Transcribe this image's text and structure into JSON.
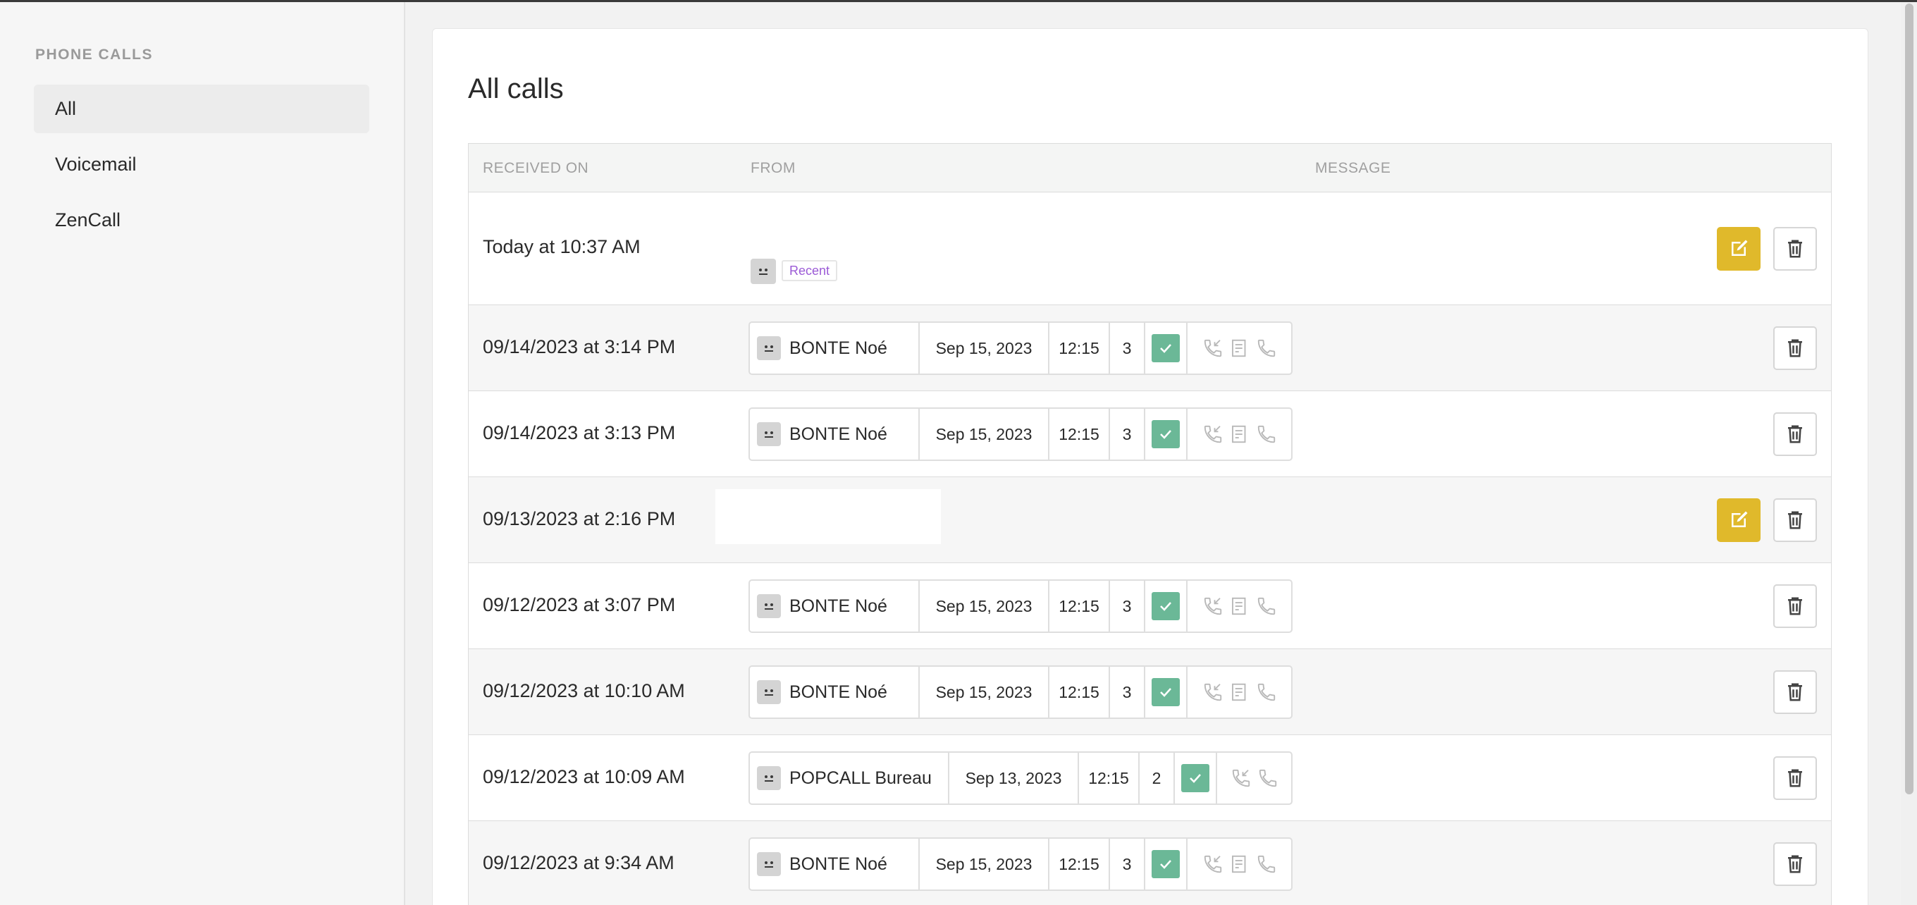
{
  "sidebar": {
    "heading": "PHONE CALLS",
    "items": [
      {
        "label": "All",
        "active": true
      },
      {
        "label": "Voicemail",
        "active": false
      },
      {
        "label": "ZenCall",
        "active": false
      }
    ]
  },
  "main": {
    "title": "All calls",
    "columns": {
      "received": "RECEIVED ON",
      "from": "FROM",
      "message": "MESSAGE"
    },
    "rows": [
      {
        "date": "Today at 10:37 AM",
        "badge": "Recent"
      },
      {
        "date": "09/14/2023 at 3:14 PM",
        "name": "BONTE Noé",
        "callDate": "Sep 15, 2023",
        "time": "12:15",
        "count": "3"
      },
      {
        "date": "09/14/2023 at 3:13 PM",
        "name": "BONTE Noé",
        "callDate": "Sep 15, 2023",
        "time": "12:15",
        "count": "3"
      },
      {
        "date": "09/13/2023 at 2:16 PM"
      },
      {
        "date": "09/12/2023 at 3:07 PM",
        "name": "BONTE Noé",
        "callDate": "Sep 15, 2023",
        "time": "12:15",
        "count": "3"
      },
      {
        "date": "09/12/2023 at 10:10 AM",
        "name": "BONTE Noé",
        "callDate": "Sep 15, 2023",
        "time": "12:15",
        "count": "3"
      },
      {
        "date": "09/12/2023 at 10:09 AM",
        "name": "POPCALL Bureau",
        "callDate": "Sep 13, 2023",
        "time": "12:15",
        "count": "2"
      },
      {
        "date": "09/12/2023 at 9:34 AM",
        "name": "BONTE Noé",
        "callDate": "Sep 15, 2023",
        "time": "12:15",
        "count": "3"
      }
    ]
  },
  "colors": {
    "edit": "#e0b92b",
    "check": "#6bb897",
    "badge": "#9b5ad6"
  },
  "icons": [
    "face-icon",
    "check-icon",
    "incoming-call-icon",
    "contact-card-icon",
    "phone-icon",
    "edit-icon",
    "trash-icon"
  ]
}
